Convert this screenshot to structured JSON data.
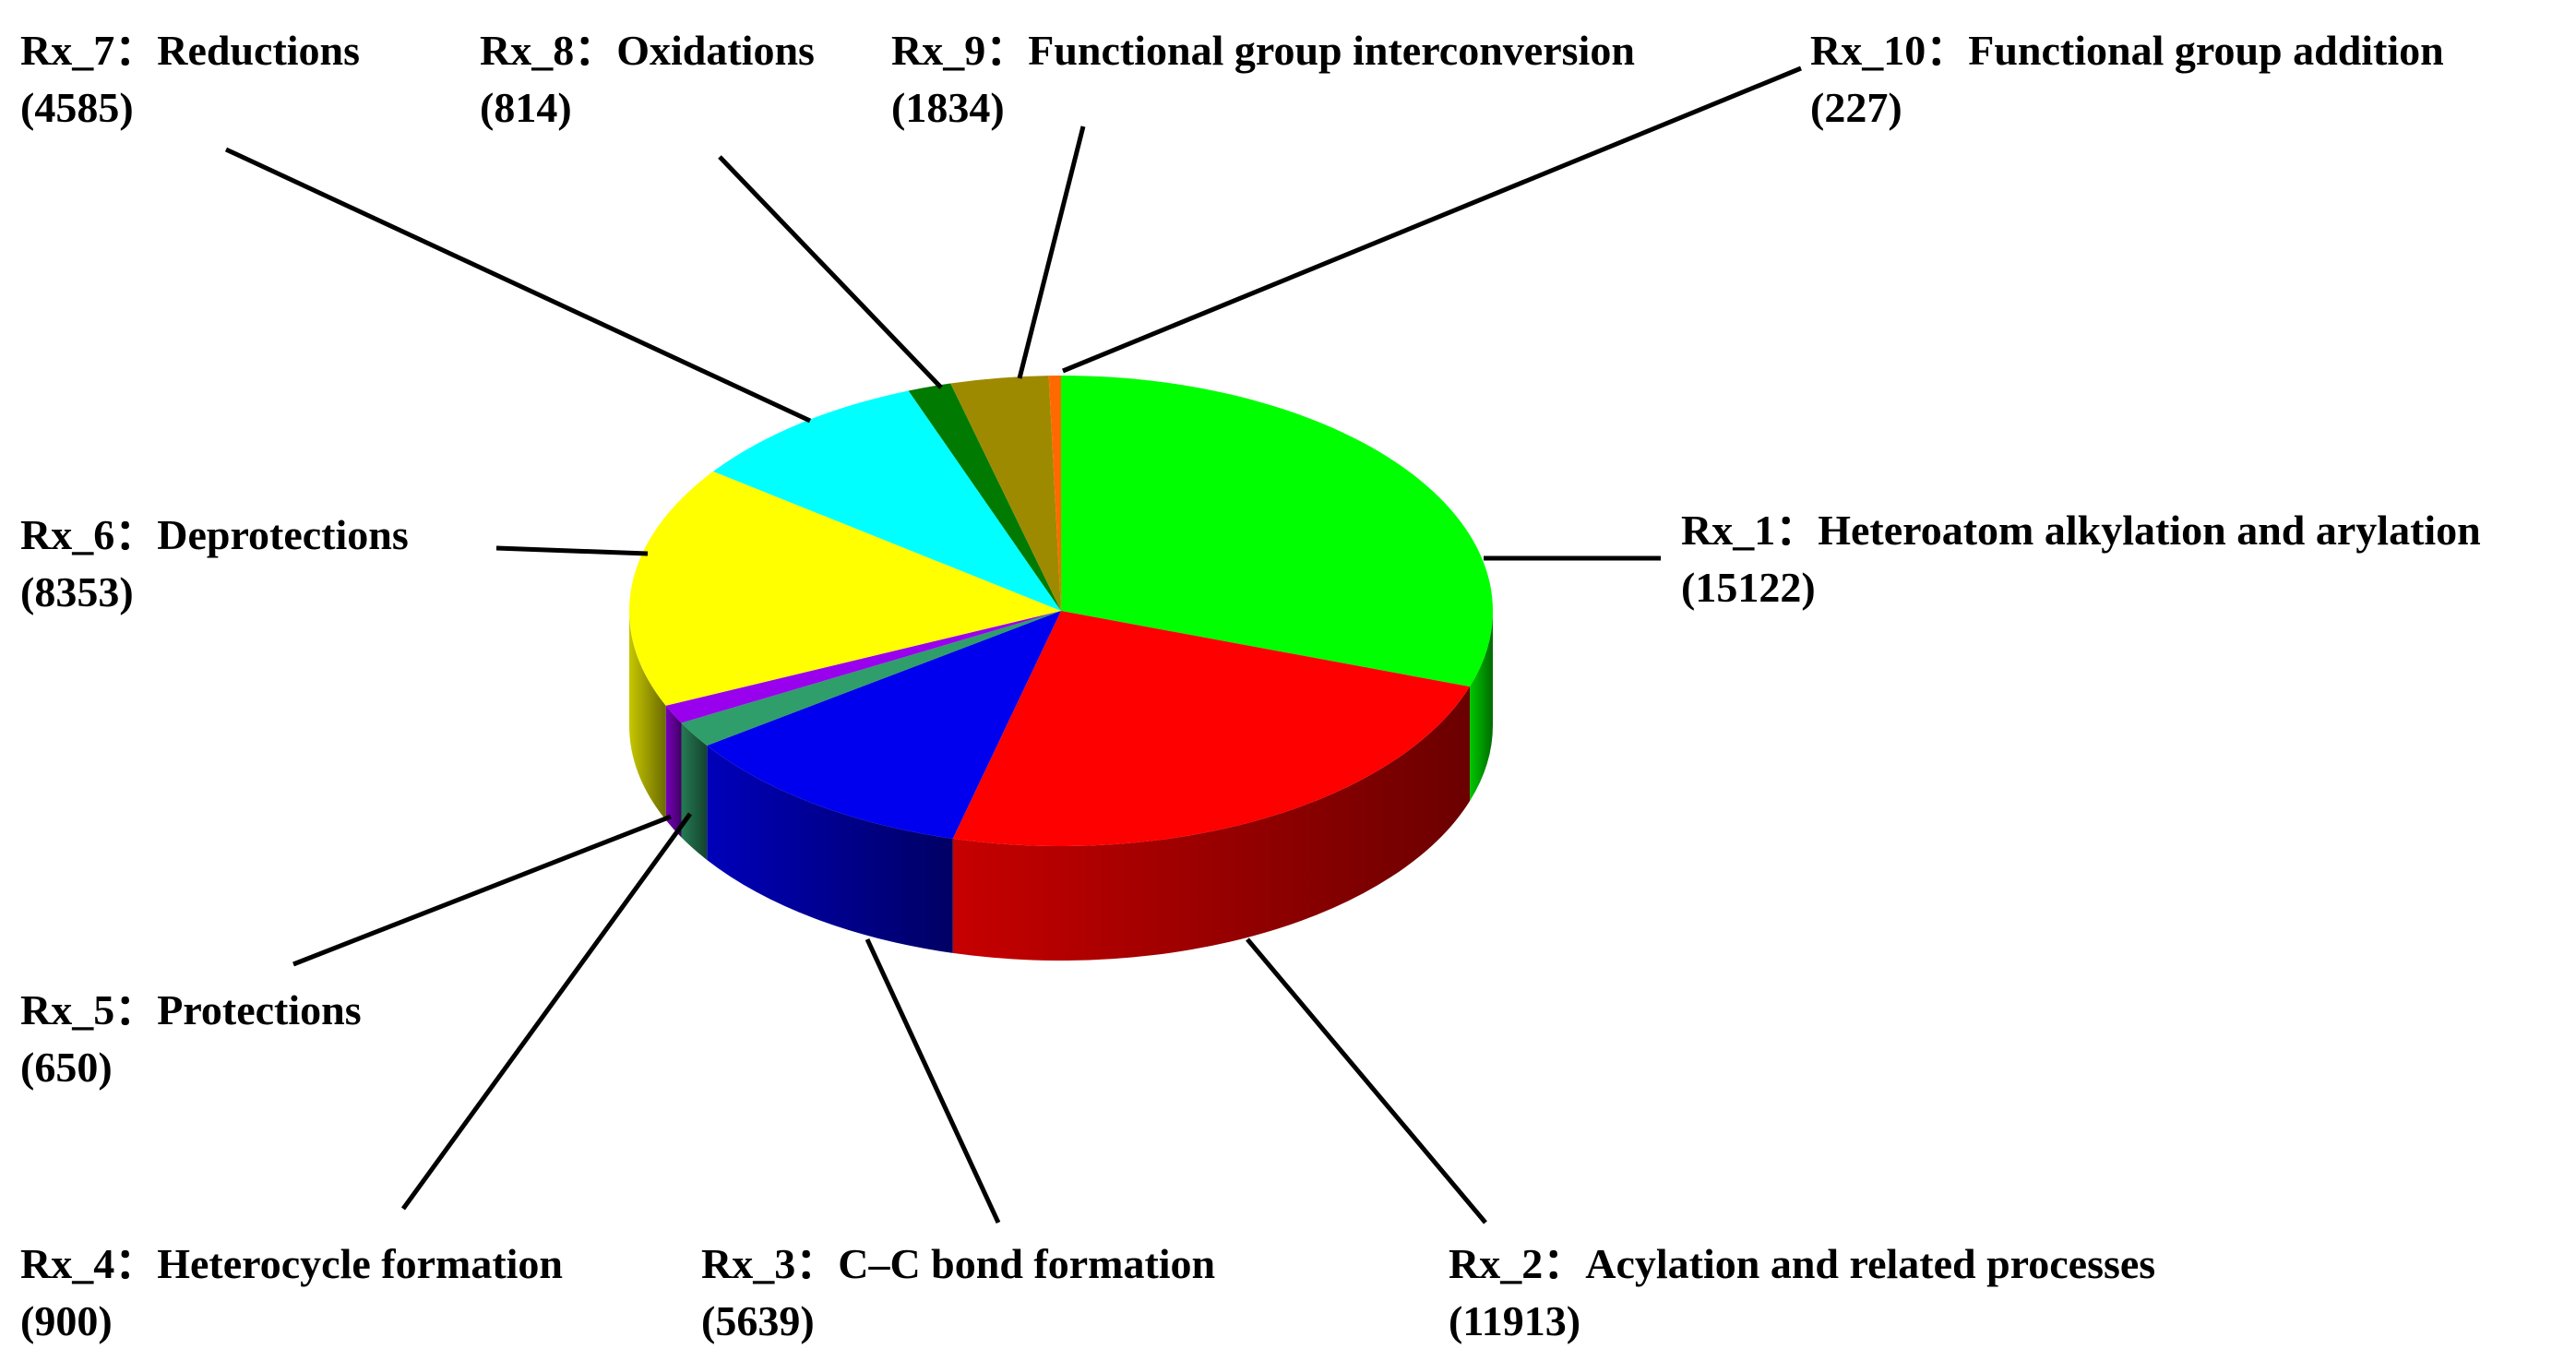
{
  "chart_data": {
    "type": "pie",
    "title": "",
    "slices": [
      {
        "id": "Rx_1",
        "name": "Heteroatom alkylation and arylation",
        "count": "(15122)",
        "value": 15122,
        "color": "#00ff00"
      },
      {
        "id": "Rx_2",
        "name": "Acylation and related processes",
        "count": "(11913)",
        "value": 11913,
        "color": "#ff0000"
      },
      {
        "id": "Rx_3",
        "name": "C–C bond formation",
        "count": "(5639)",
        "value": 5639,
        "color": "#0000ee"
      },
      {
        "id": "Rx_4",
        "name": "Heterocycle formation",
        "count": "(900)",
        "value": 900,
        "color": "#2f9e6a"
      },
      {
        "id": "Rx_5",
        "name": "Protections",
        "count": "(650)",
        "value": 650,
        "color": "#9900ee"
      },
      {
        "id": "Rx_6",
        "name": "Deprotections",
        "count": "(8353)",
        "value": 8353,
        "color": "#ffff00"
      },
      {
        "id": "Rx_7",
        "name": "Reductions",
        "count": "(4585)",
        "value": 4585,
        "color": "#00ffff"
      },
      {
        "id": "Rx_8",
        "name": "Oxidations",
        "count": "(814)",
        "value": 814,
        "color": "#007a00"
      },
      {
        "id": "Rx_9",
        "name": "Functional group interconversion",
        "count": "(1834)",
        "value": 1834,
        "color": "#9e8a00"
      },
      {
        "id": "Rx_10",
        "name": "Functional group addition",
        "count": "(227)",
        "value": 227,
        "color": "#ff6a00"
      }
    ],
    "legend": "none",
    "separator": "："
  }
}
